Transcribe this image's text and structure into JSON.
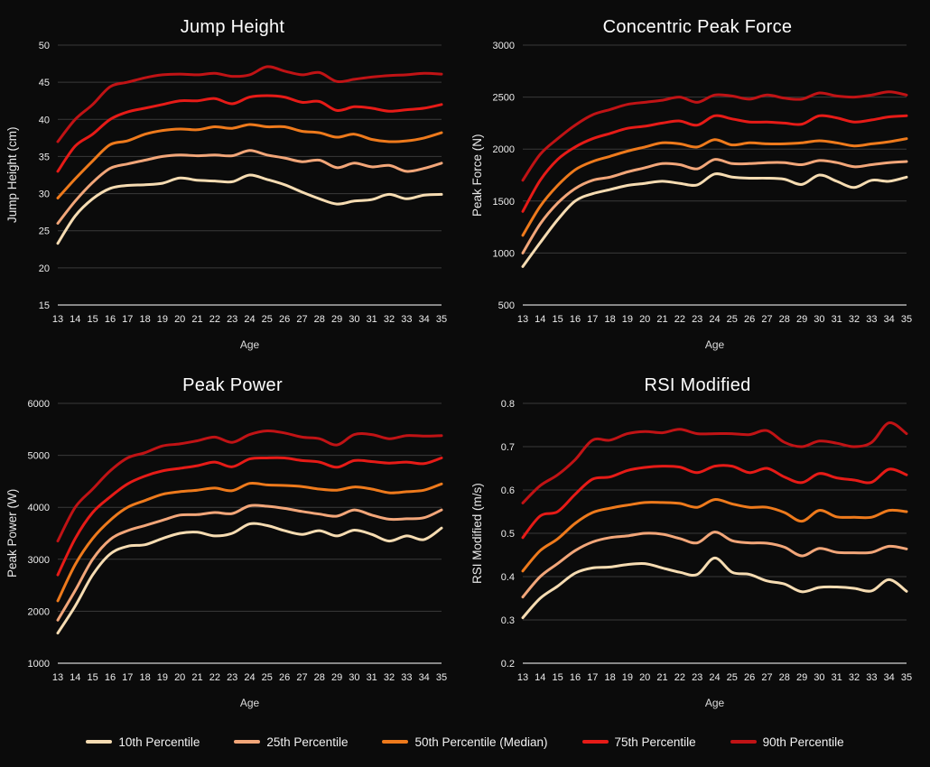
{
  "theme": {
    "background": "#0b0b0b",
    "grid_color": "#3a3a3a",
    "axis_color": "#9a9a9a",
    "text_color": "#ececec",
    "title_color": "#ffffff"
  },
  "legend": {
    "items": [
      {
        "label": "10th Percentile",
        "color": "#f6dcb2"
      },
      {
        "label": "25th Percentile",
        "color": "#f2a679"
      },
      {
        "label": "50th Percentile (Median)",
        "color": "#ee7a1c"
      },
      {
        "label": "75th Percentile",
        "color": "#e61b17"
      },
      {
        "label": "90th Percentile",
        "color": "#c01315"
      }
    ]
  },
  "chart_data": [
    {
      "type": "line",
      "title": "Jump Height",
      "xlabel": "Age",
      "ylabel": "Jump Height (cm)",
      "x": [
        13,
        14,
        15,
        16,
        17,
        18,
        19,
        20,
        21,
        22,
        23,
        24,
        25,
        26,
        27,
        28,
        29,
        30,
        31,
        32,
        33,
        34,
        35
      ],
      "ylim": [
        15,
        50
      ],
      "ytick_step": 5,
      "grid": true,
      "legend_position": "bottom",
      "series": [
        {
          "name": "10th Percentile",
          "color": "#f6dcb2",
          "values": [
            23.3,
            27.0,
            29.3,
            30.7,
            31.1,
            31.2,
            31.4,
            32.1,
            31.8,
            31.7,
            31.6,
            32.5,
            31.9,
            31.2,
            30.2,
            29.3,
            28.6,
            29.0,
            29.2,
            29.9,
            29.3,
            29.8,
            29.9
          ]
        },
        {
          "name": "25th Percentile",
          "color": "#f2a679",
          "values": [
            26.0,
            29.0,
            31.5,
            33.4,
            34.0,
            34.5,
            35.0,
            35.2,
            35.1,
            35.2,
            35.1,
            35.8,
            35.2,
            34.8,
            34.3,
            34.5,
            33.5,
            34.1,
            33.6,
            33.8,
            33.0,
            33.4,
            34.1
          ]
        },
        {
          "name": "50th Percentile (Median)",
          "color": "#ee7a1c",
          "values": [
            29.4,
            32.0,
            34.4,
            36.6,
            37.1,
            38.0,
            38.5,
            38.7,
            38.6,
            39.0,
            38.8,
            39.3,
            39.0,
            39.0,
            38.4,
            38.2,
            37.6,
            38.0,
            37.3,
            37.0,
            37.1,
            37.5,
            38.2
          ]
        },
        {
          "name": "75th Percentile",
          "color": "#e61b17",
          "values": [
            33.0,
            36.4,
            38.0,
            40.0,
            41.0,
            41.5,
            42.0,
            42.5,
            42.5,
            42.8,
            42.1,
            43.0,
            43.2,
            43.0,
            42.3,
            42.4,
            41.2,
            41.7,
            41.5,
            41.1,
            41.3,
            41.5,
            42.0
          ]
        },
        {
          "name": "90th Percentile",
          "color": "#c01315",
          "values": [
            37.0,
            40.0,
            42.0,
            44.4,
            45.0,
            45.6,
            46.0,
            46.1,
            46.0,
            46.2,
            45.8,
            46.0,
            47.1,
            46.5,
            46.0,
            46.3,
            45.1,
            45.4,
            45.7,
            45.9,
            46.0,
            46.2,
            46.1
          ]
        }
      ]
    },
    {
      "type": "line",
      "title": "Concentric Peak Force",
      "xlabel": "Age",
      "ylabel": "Peak Force (N)",
      "x": [
        13,
        14,
        15,
        16,
        17,
        18,
        19,
        20,
        21,
        22,
        23,
        24,
        25,
        26,
        27,
        28,
        29,
        30,
        31,
        32,
        33,
        34,
        35
      ],
      "ylim": [
        500,
        3000
      ],
      "ytick_step": 500,
      "grid": true,
      "legend_position": "bottom",
      "series": [
        {
          "name": "10th Percentile",
          "color": "#f6dcb2",
          "values": [
            870,
            1100,
            1320,
            1500,
            1570,
            1610,
            1650,
            1670,
            1690,
            1670,
            1655,
            1760,
            1730,
            1720,
            1720,
            1710,
            1660,
            1750,
            1690,
            1630,
            1700,
            1690,
            1730
          ]
        },
        {
          "name": "25th Percentile",
          "color": "#f2a679",
          "values": [
            1000,
            1280,
            1480,
            1620,
            1700,
            1730,
            1780,
            1820,
            1860,
            1850,
            1810,
            1900,
            1860,
            1860,
            1870,
            1870,
            1850,
            1890,
            1870,
            1830,
            1850,
            1870,
            1880
          ]
        },
        {
          "name": "50th Percentile (Median)",
          "color": "#ee7a1c",
          "values": [
            1170,
            1450,
            1650,
            1800,
            1880,
            1930,
            1980,
            2020,
            2060,
            2050,
            2020,
            2090,
            2040,
            2060,
            2050,
            2050,
            2060,
            2080,
            2060,
            2030,
            2050,
            2070,
            2100
          ]
        },
        {
          "name": "75th Percentile",
          "color": "#e61b17",
          "values": [
            1400,
            1700,
            1900,
            2020,
            2100,
            2150,
            2200,
            2220,
            2250,
            2270,
            2230,
            2320,
            2290,
            2260,
            2260,
            2250,
            2240,
            2320,
            2300,
            2260,
            2280,
            2310,
            2320
          ]
        },
        {
          "name": "90th Percentile",
          "color": "#c01315",
          "values": [
            1700,
            1950,
            2100,
            2230,
            2330,
            2380,
            2430,
            2450,
            2470,
            2500,
            2450,
            2520,
            2510,
            2480,
            2520,
            2490,
            2480,
            2540,
            2510,
            2500,
            2520,
            2550,
            2520
          ]
        }
      ]
    },
    {
      "type": "line",
      "title": "Peak Power",
      "xlabel": "Age",
      "ylabel": "Peak Power (W)",
      "x": [
        13,
        14,
        15,
        16,
        17,
        18,
        19,
        20,
        21,
        22,
        23,
        24,
        25,
        26,
        27,
        28,
        29,
        30,
        31,
        32,
        33,
        34,
        35
      ],
      "ylim": [
        1000,
        6000
      ],
      "ytick_step": 1000,
      "grid": true,
      "legend_position": "bottom",
      "series": [
        {
          "name": "10th Percentile",
          "color": "#f6dcb2",
          "values": [
            1580,
            2100,
            2700,
            3100,
            3250,
            3280,
            3400,
            3500,
            3520,
            3450,
            3500,
            3680,
            3650,
            3550,
            3480,
            3550,
            3450,
            3560,
            3480,
            3350,
            3450,
            3380,
            3600
          ]
        },
        {
          "name": "25th Percentile",
          "color": "#f2a679",
          "values": [
            1830,
            2400,
            3000,
            3380,
            3550,
            3650,
            3750,
            3850,
            3860,
            3900,
            3880,
            4030,
            4020,
            3980,
            3920,
            3870,
            3830,
            3950,
            3850,
            3770,
            3780,
            3800,
            3950
          ]
        },
        {
          "name": "50th Percentile (Median)",
          "color": "#ee7a1c",
          "values": [
            2200,
            2900,
            3400,
            3750,
            4000,
            4130,
            4250,
            4300,
            4330,
            4370,
            4320,
            4460,
            4430,
            4420,
            4400,
            4350,
            4330,
            4390,
            4350,
            4280,
            4300,
            4330,
            4450
          ]
        },
        {
          "name": "75th Percentile",
          "color": "#e61b17",
          "values": [
            2700,
            3400,
            3900,
            4200,
            4450,
            4600,
            4700,
            4750,
            4800,
            4870,
            4780,
            4930,
            4950,
            4950,
            4900,
            4870,
            4770,
            4900,
            4880,
            4850,
            4870,
            4840,
            4950
          ]
        },
        {
          "name": "90th Percentile",
          "color": "#c01315",
          "values": [
            3350,
            4000,
            4350,
            4700,
            4950,
            5050,
            5180,
            5220,
            5280,
            5350,
            5250,
            5400,
            5470,
            5430,
            5350,
            5320,
            5200,
            5400,
            5400,
            5320,
            5380,
            5370,
            5380
          ]
        }
      ]
    },
    {
      "type": "line",
      "title": "RSI Modified",
      "xlabel": "Age",
      "ylabel": "RSI Modified (m/s)",
      "x": [
        13,
        14,
        15,
        16,
        17,
        18,
        19,
        20,
        21,
        22,
        23,
        24,
        25,
        26,
        27,
        28,
        29,
        30,
        31,
        32,
        33,
        34,
        35
      ],
      "ylim": [
        0.2,
        0.8
      ],
      "ytick_step": 0.1,
      "grid": true,
      "legend_position": "bottom",
      "series": [
        {
          "name": "10th Percentile",
          "color": "#f6dcb2",
          "values": [
            0.305,
            0.35,
            0.378,
            0.408,
            0.42,
            0.422,
            0.428,
            0.43,
            0.42,
            0.41,
            0.405,
            0.443,
            0.41,
            0.405,
            0.39,
            0.383,
            0.365,
            0.375,
            0.376,
            0.373,
            0.367,
            0.393,
            0.366
          ]
        },
        {
          "name": "25th Percentile",
          "color": "#f2a679",
          "values": [
            0.353,
            0.4,
            0.43,
            0.46,
            0.48,
            0.49,
            0.494,
            0.5,
            0.498,
            0.488,
            0.478,
            0.503,
            0.483,
            0.478,
            0.477,
            0.468,
            0.448,
            0.465,
            0.456,
            0.455,
            0.456,
            0.47,
            0.464
          ]
        },
        {
          "name": "50th Percentile (Median)",
          "color": "#ee7a1c",
          "values": [
            0.413,
            0.46,
            0.487,
            0.523,
            0.548,
            0.558,
            0.565,
            0.571,
            0.571,
            0.569,
            0.56,
            0.578,
            0.568,
            0.56,
            0.56,
            0.548,
            0.528,
            0.553,
            0.538,
            0.537,
            0.537,
            0.553,
            0.55
          ]
        },
        {
          "name": "75th Percentile",
          "color": "#e61b17",
          "values": [
            0.49,
            0.54,
            0.55,
            0.59,
            0.625,
            0.63,
            0.645,
            0.652,
            0.655,
            0.653,
            0.64,
            0.655,
            0.655,
            0.64,
            0.65,
            0.63,
            0.617,
            0.638,
            0.628,
            0.623,
            0.618,
            0.648,
            0.635
          ]
        },
        {
          "name": "90th Percentile",
          "color": "#c01315",
          "values": [
            0.57,
            0.61,
            0.635,
            0.67,
            0.715,
            0.715,
            0.73,
            0.735,
            0.732,
            0.74,
            0.73,
            0.73,
            0.73,
            0.728,
            0.737,
            0.71,
            0.7,
            0.713,
            0.708,
            0.7,
            0.71,
            0.755,
            0.73
          ]
        }
      ]
    }
  ]
}
